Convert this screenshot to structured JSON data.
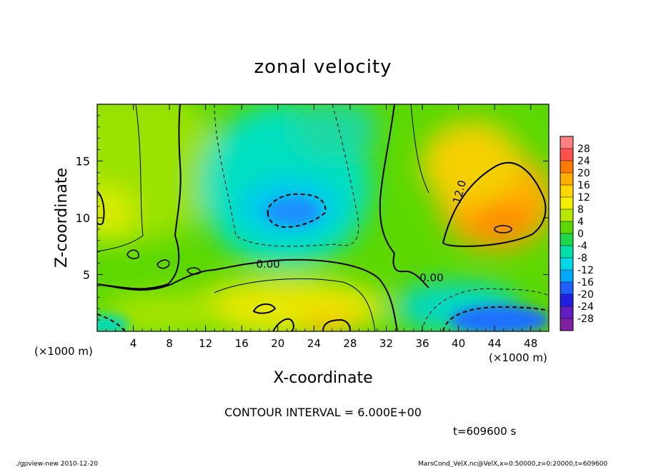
{
  "chart_data": {
    "type": "heatmap",
    "title": "zonal velocity",
    "xlabel": "X-coordinate",
    "ylabel": "Z-coordinate",
    "x_unit": "(×1000 m)",
    "xlim": [
      0,
      50
    ],
    "ylim": [
      0,
      20
    ],
    "x_ticks": [
      4,
      8,
      12,
      16,
      20,
      24,
      28,
      32,
      36,
      40,
      44,
      48
    ],
    "y_ticks": [
      5,
      10,
      15
    ],
    "contour_interval_text": "CONTOUR INTERVAL = 6.000E+00",
    "time_text": "t=609600 s",
    "contour_labels": [
      {
        "text": "0.00",
        "x": 17.6,
        "z": 5.6
      },
      {
        "text": "0.00",
        "x": 35.7,
        "z": 4.4
      },
      {
        "text": "12.0",
        "x": 40.5,
        "z": 12.2
      }
    ],
    "colorbar": {
      "labels": [
        "28",
        "24",
        "20",
        "16",
        "12",
        "8",
        "4",
        "0",
        "-4",
        "-8",
        "-12",
        "-16",
        "-20",
        "-24",
        "-28"
      ],
      "colors": [
        "#ff8080",
        "#ff5050",
        "#ff7a00",
        "#ffae00",
        "#ffd700",
        "#f5f000",
        "#b8e800",
        "#5cd800",
        "#1ed84a",
        "#00e0a8",
        "#00d8e8",
        "#00a8ff",
        "#1e60ff",
        "#2020e0",
        "#6020c0",
        "#8020a0"
      ]
    },
    "field_points": [
      {
        "x": 2,
        "z": 16,
        "v": 5
      },
      {
        "x": 6,
        "z": 15,
        "v": 3
      },
      {
        "x": 12,
        "z": 15,
        "v": 1
      },
      {
        "x": 20,
        "z": 13,
        "v": -8
      },
      {
        "x": 22,
        "z": 10.5,
        "v": -13
      },
      {
        "x": 25,
        "z": 14,
        "v": -6
      },
      {
        "x": 30,
        "z": 16,
        "v": -5
      },
      {
        "x": 32,
        "z": 8,
        "v": -4
      },
      {
        "x": 36,
        "z": 15,
        "v": 3
      },
      {
        "x": 45,
        "z": 12,
        "v": 14
      },
      {
        "x": 46,
        "z": 9,
        "v": 16
      },
      {
        "x": 47,
        "z": 15,
        "v": 12
      },
      {
        "x": 20,
        "z": 2,
        "v": 9
      },
      {
        "x": 26,
        "z": 1,
        "v": 13
      },
      {
        "x": 8,
        "z": 2,
        "v": 6
      },
      {
        "x": 44,
        "z": 1.2,
        "v": -14
      },
      {
        "x": 2,
        "z": 1.5,
        "v": -4
      },
      {
        "x": 38,
        "z": 2,
        "v": -6
      },
      {
        "x": 40,
        "z": 6,
        "v": 3
      },
      {
        "x": 1,
        "z": 11,
        "v": 12
      }
    ]
  },
  "footer": {
    "left": "./gpview-new  2010-12-20",
    "right": "MarsCond_VelX.nc@VelX,x=0:50000,z=0:20000,t=609600"
  }
}
